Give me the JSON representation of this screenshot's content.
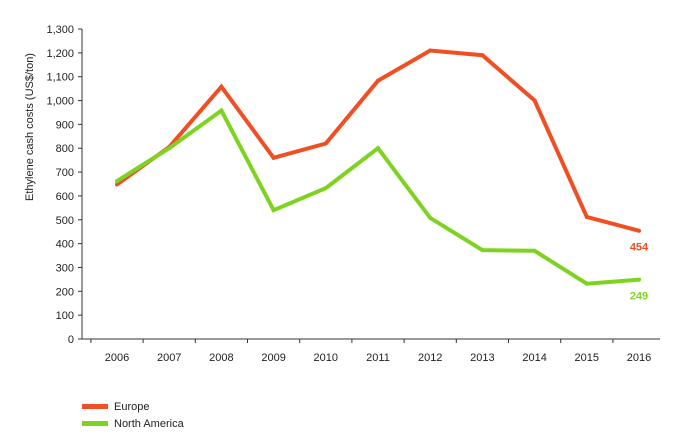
{
  "chart_data": {
    "type": "line",
    "title": "",
    "xlabel": "",
    "ylabel": "Ethylene cash costs (US$/ton)",
    "ylim": [
      0,
      1300
    ],
    "y_ticks": [
      0,
      100,
      200,
      300,
      400,
      500,
      600,
      700,
      800,
      900,
      1000,
      1100,
      1200,
      1300
    ],
    "y_tick_labels": [
      "0",
      "100",
      "200",
      "300",
      "400",
      "500",
      "600",
      "700",
      "800",
      "900",
      "1,000",
      "1,100",
      "1,200",
      "1,300"
    ],
    "categories": [
      "2006",
      "2007",
      "2008",
      "2009",
      "2010",
      "2011",
      "2012",
      "2013",
      "2014",
      "2015",
      "2016"
    ],
    "grid": false,
    "legend_position": "bottom-left",
    "series": [
      {
        "name": "Europe",
        "color": "#f04e23",
        "values": [
          648,
          805,
          1058,
          760,
          820,
          1083,
          1210,
          1190,
          1000,
          512,
          454
        ],
        "end_label": "454"
      },
      {
        "name": "North America",
        "color": "#7ed321",
        "values": [
          662,
          800,
          958,
          540,
          633,
          800,
          508,
          373,
          370,
          232,
          249
        ],
        "end_label": "249"
      }
    ]
  }
}
